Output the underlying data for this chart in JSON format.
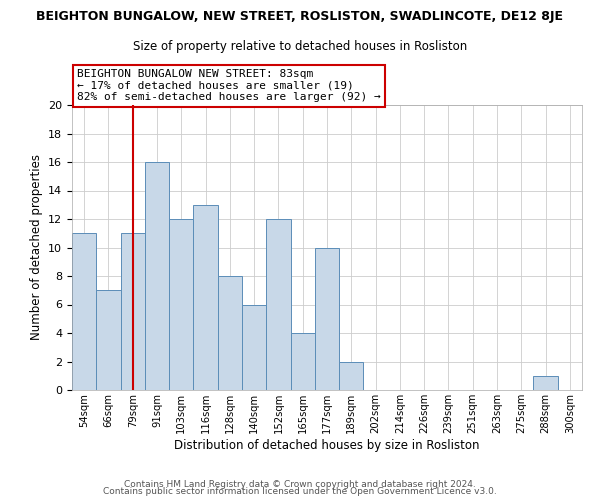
{
  "title": "BEIGHTON BUNGALOW, NEW STREET, ROSLISTON, SWADLINCOTE, DE12 8JE",
  "subtitle": "Size of property relative to detached houses in Rosliston",
  "xlabel": "Distribution of detached houses by size in Rosliston",
  "ylabel": "Number of detached properties",
  "bin_labels": [
    "54sqm",
    "66sqm",
    "79sqm",
    "91sqm",
    "103sqm",
    "116sqm",
    "128sqm",
    "140sqm",
    "152sqm",
    "165sqm",
    "177sqm",
    "189sqm",
    "202sqm",
    "214sqm",
    "226sqm",
    "239sqm",
    "251sqm",
    "263sqm",
    "275sqm",
    "288sqm",
    "300sqm"
  ],
  "bar_heights": [
    11,
    7,
    11,
    16,
    12,
    13,
    8,
    6,
    12,
    4,
    10,
    2,
    0,
    0,
    0,
    0,
    0,
    0,
    0,
    1,
    0
  ],
  "bar_color": "#c8d8e8",
  "bar_edge_color": "#5b8db8",
  "highlight_bar_index": 2,
  "highlight_color": "#cc0000",
  "annotation_text": "BEIGHTON BUNGALOW NEW STREET: 83sqm\n← 17% of detached houses are smaller (19)\n82% of semi-detached houses are larger (92) →",
  "annotation_box_color": "#ffffff",
  "annotation_box_edge": "#cc0000",
  "ylim": [
    0,
    20
  ],
  "yticks": [
    0,
    2,
    4,
    6,
    8,
    10,
    12,
    14,
    16,
    18,
    20
  ],
  "footer1": "Contains HM Land Registry data © Crown copyright and database right 2024.",
  "footer2": "Contains public sector information licensed under the Open Government Licence v3.0.",
  "background_color": "#ffffff",
  "grid_color": "#cccccc"
}
